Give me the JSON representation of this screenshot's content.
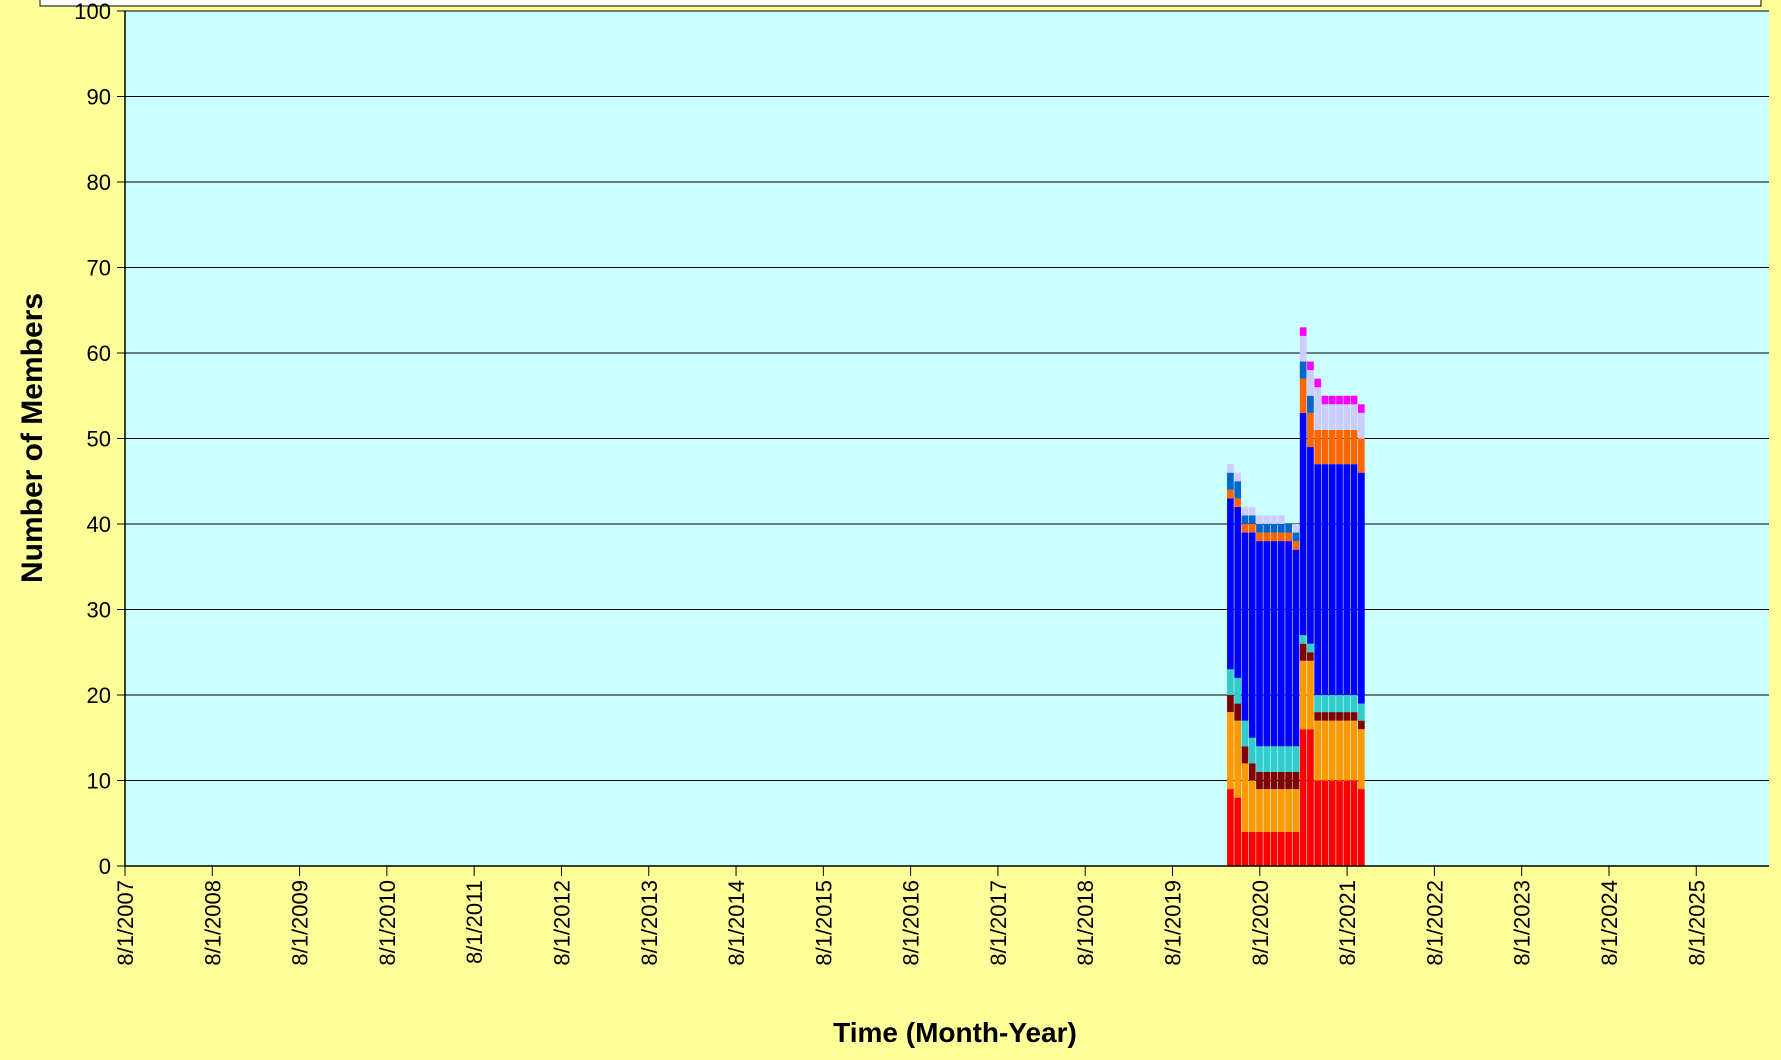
{
  "chart_data": {
    "type": "stacked_bar",
    "x_label": "Time (Month-Year)",
    "y_label": "Number of Members",
    "x": [
      "4/1/2020",
      "5/1/2020",
      "6/1/2020",
      "7/1/2020",
      "8/1/2020",
      "9/1/2020",
      "10/1/2020",
      "11/1/2020",
      "12/1/2020",
      "1/1/2021",
      "2/1/2021",
      "3/1/2021",
      "4/1/2021",
      "5/1/2021",
      "6/1/2021",
      "7/1/2021",
      "8/1/2021",
      "9/1/2021",
      "10/1/2021"
    ],
    "series": [
      {
        "color": "#FF0000",
        "values": [
          9,
          8,
          4,
          4,
          4,
          4,
          4,
          4,
          4,
          4,
          16,
          16,
          10,
          10,
          10,
          10,
          10,
          10,
          9
        ]
      },
      {
        "color": "#FF9900",
        "values": [
          9,
          9,
          8,
          6,
          5,
          5,
          5,
          5,
          5,
          5,
          8,
          8,
          7,
          7,
          7,
          7,
          7,
          7,
          7
        ]
      },
      {
        "color": "#800000",
        "values": [
          2,
          2,
          2,
          2,
          2,
          2,
          2,
          2,
          2,
          2,
          2,
          1,
          1,
          1,
          1,
          1,
          1,
          1,
          1
        ]
      },
      {
        "color": "#33CCCC",
        "values": [
          3,
          3,
          3,
          3,
          3,
          3,
          3,
          3,
          3,
          3,
          1,
          1,
          2,
          2,
          2,
          2,
          2,
          2,
          2
        ]
      },
      {
        "color": "#0000FF",
        "values": [
          20,
          20,
          22,
          24,
          24,
          24,
          24,
          24,
          24,
          23,
          26,
          23,
          27,
          27,
          27,
          27,
          27,
          27,
          27
        ]
      },
      {
        "color": "#FF6600",
        "values": [
          1,
          1,
          1,
          1,
          1,
          1,
          1,
          1,
          1,
          1,
          4,
          4,
          4,
          4,
          4,
          4,
          4,
          4,
          4
        ]
      },
      {
        "color": "#0066CC",
        "values": [
          2,
          2,
          1,
          1,
          1,
          1,
          1,
          1,
          1,
          1,
          2,
          2,
          0,
          0,
          0,
          0,
          0,
          0,
          0
        ]
      },
      {
        "color": "#CCCCFF",
        "values": [
          1,
          1,
          1,
          1,
          1,
          1,
          1,
          1,
          0,
          1,
          3,
          3,
          5,
          3,
          3,
          3,
          3,
          3,
          3
        ]
      },
      {
        "color": "#FF00FF",
        "values": [
          0,
          0,
          0,
          0,
          0,
          0,
          0,
          0,
          0,
          0,
          1,
          1,
          1,
          1,
          1,
          1,
          1,
          1,
          1
        ]
      }
    ],
    "xlim": [
      "8/1/2007",
      "6/1/2026"
    ],
    "xticks": [
      "8/1/2007",
      "8/1/2008",
      "8/1/2009",
      "8/1/2010",
      "8/1/2011",
      "8/1/2012",
      "8/1/2013",
      "8/1/2014",
      "8/1/2015",
      "8/1/2016",
      "8/1/2017",
      "8/1/2018",
      "8/1/2019",
      "8/1/2020",
      "8/1/2021",
      "8/1/2022",
      "8/1/2023",
      "8/1/2024",
      "8/1/2025"
    ],
    "ylim": [
      0,
      100
    ],
    "yticks": [
      0,
      10,
      20,
      30,
      40,
      50,
      60,
      70,
      80,
      90,
      100
    ],
    "grid": true
  }
}
